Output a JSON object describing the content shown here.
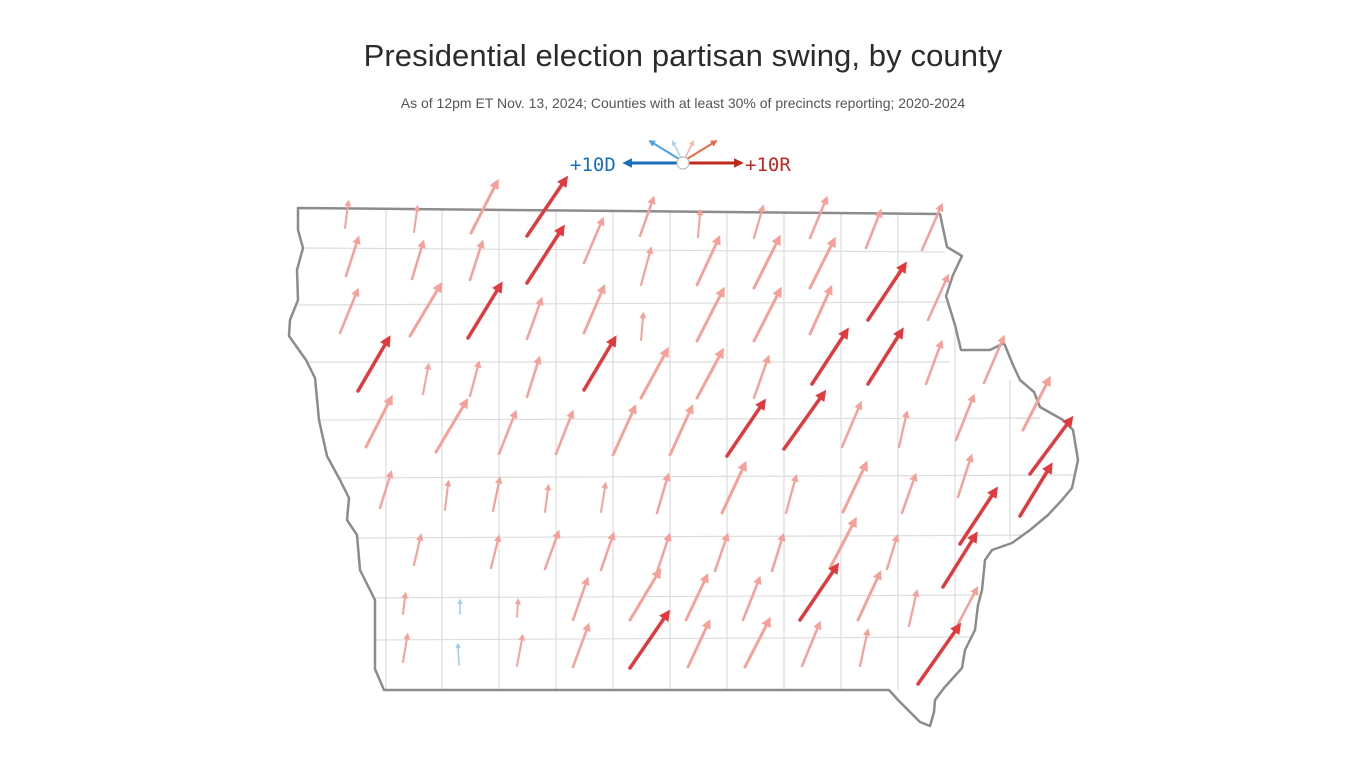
{
  "title": "Presidential election partisan swing, by county",
  "subtitle": "As of 12pm ET Nov. 13, 2024; Counties with at least 30% of precincts reporting; 2020-2024",
  "legend": {
    "dem_label": "+10D",
    "rep_label": "+10R",
    "dem_color": "#1a6fbd",
    "rep_color": "#c0281e"
  },
  "colors": {
    "strong_rep": "#e0393e",
    "light_rep": "#f6a09a",
    "light_dem": "#9ecff0",
    "state_outline": "#8c8c8c",
    "county_lines": "#dddddd"
  },
  "map_region": "Iowa"
}
